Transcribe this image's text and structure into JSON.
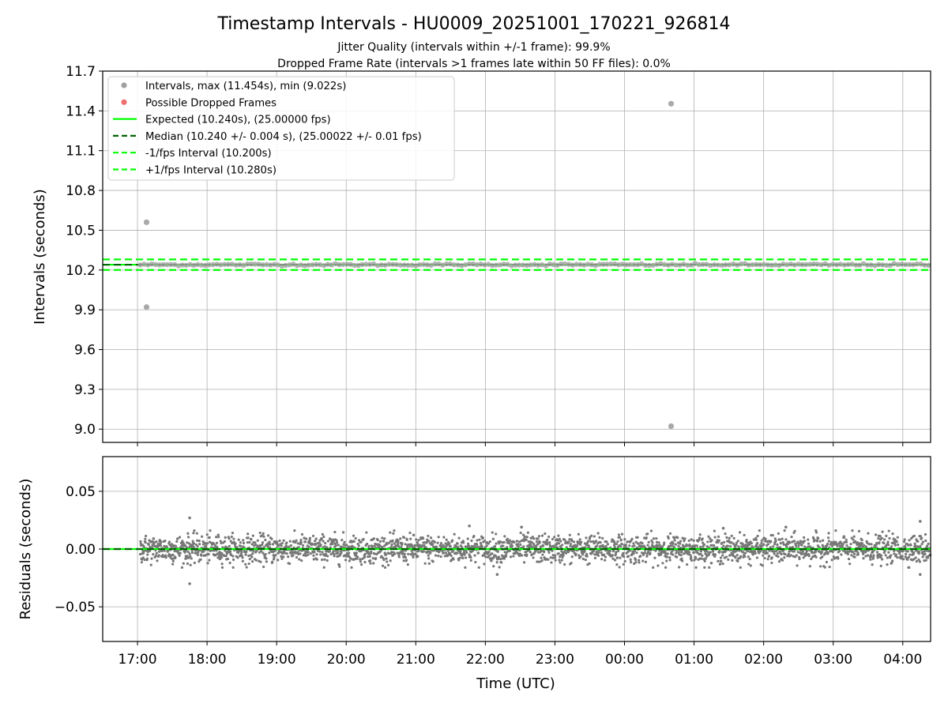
{
  "chart_data": [
    {
      "type": "scatter",
      "title": "Timestamp Intervals - HU0009_20251001_170221_926814",
      "subtitle_lines": [
        "Jitter Quality (intervals within +/-1 frame): 99.9%",
        "Dropped Frame Rate (intervals >1 frames late within 50 FF files): 0.0%"
      ],
      "xlabel": "",
      "ylabel": "Intervals (seconds)",
      "xlim_hours": [
        16.5,
        28.4
      ],
      "ylim": [
        8.9,
        11.7
      ],
      "yticks": [
        9.0,
        9.3,
        9.6,
        9.9,
        10.2,
        10.5,
        10.8,
        11.1,
        11.4,
        11.7
      ],
      "ytick_labels": [
        "9.0",
        "9.3",
        "9.6",
        "9.9",
        "10.2",
        "10.5",
        "10.8",
        "11.1",
        "11.4",
        "11.7"
      ],
      "grid": true,
      "legend_position": "top-left",
      "legend": [
        {
          "label": "Intervals, max (11.454s), min (9.022s)",
          "kind": "dot",
          "color": "#a0a0a0"
        },
        {
          "label": "Possible Dropped Frames",
          "kind": "dot",
          "color": "#f07070"
        },
        {
          "label": "Expected (10.240s), (25.00000 fps)",
          "kind": "solid",
          "color": "#00ff00"
        },
        {
          "label": "Median (10.240 +/- 0.004 s), (25.00022 +/- 0.01 fps)",
          "kind": "dashed",
          "color": "#006400"
        },
        {
          "label": "-1/fps Interval (10.200s)",
          "kind": "dashed",
          "color": "#00ff00"
        },
        {
          "label": "+1/fps Interval (10.280s)",
          "kind": "dashed",
          "color": "#00ff00"
        }
      ],
      "reference_lines": {
        "expected": 10.24,
        "median": 10.24,
        "minus_one_frame": 10.2,
        "plus_one_frame": 10.28
      },
      "series": [
        {
          "name": "Intervals",
          "start_hour": 17.04,
          "end_hour": 28.4,
          "typical_value": 10.24,
          "outliers": [
            {
              "x_hour": 17.13,
              "y": 10.56
            },
            {
              "x_hour": 17.13,
              "y": 9.92
            },
            {
              "x_hour": 24.67,
              "y": 11.454
            },
            {
              "x_hour": 24.67,
              "y": 9.022
            }
          ]
        }
      ]
    },
    {
      "type": "scatter",
      "xlabel": "Time (UTC)",
      "ylabel": "Residuals (seconds)",
      "xlim_hours": [
        16.5,
        28.4
      ],
      "ylim": [
        -0.08,
        0.08
      ],
      "yticks": [
        -0.05,
        0.0,
        0.05
      ],
      "ytick_labels": [
        "−0.05",
        "0.00",
        "0.05"
      ],
      "xticks_hours": [
        17,
        18,
        19,
        20,
        21,
        22,
        23,
        24,
        25,
        26,
        27,
        28
      ],
      "xtick_labels": [
        "17:00",
        "18:00",
        "19:00",
        "20:00",
        "21:00",
        "22:00",
        "23:00",
        "00:00",
        "01:00",
        "02:00",
        "03:00",
        "04:00"
      ],
      "grid": true,
      "series": [
        {
          "name": "Residuals",
          "start_hour": 17.04,
          "end_hour": 28.4,
          "typical_spread": 0.006,
          "outliers": [
            {
              "x_hour": 17.75,
              "y": 0.027
            },
            {
              "x_hour": 17.75,
              "y": -0.03
            },
            {
              "x_hour": 28.25,
              "y": 0.024
            },
            {
              "x_hour": 28.25,
              "y": -0.022
            },
            {
              "x_hour": 22.17,
              "y": -0.022
            },
            {
              "x_hour": 22.52,
              "y": 0.019
            },
            {
              "x_hour": 25.42,
              "y": 0.018
            },
            {
              "x_hour": 26.32,
              "y": 0.019
            },
            {
              "x_hour": 21.77,
              "y": 0.02
            }
          ]
        }
      ],
      "reference_lines": {
        "expected": 0.0,
        "median": 0.0
      }
    }
  ]
}
